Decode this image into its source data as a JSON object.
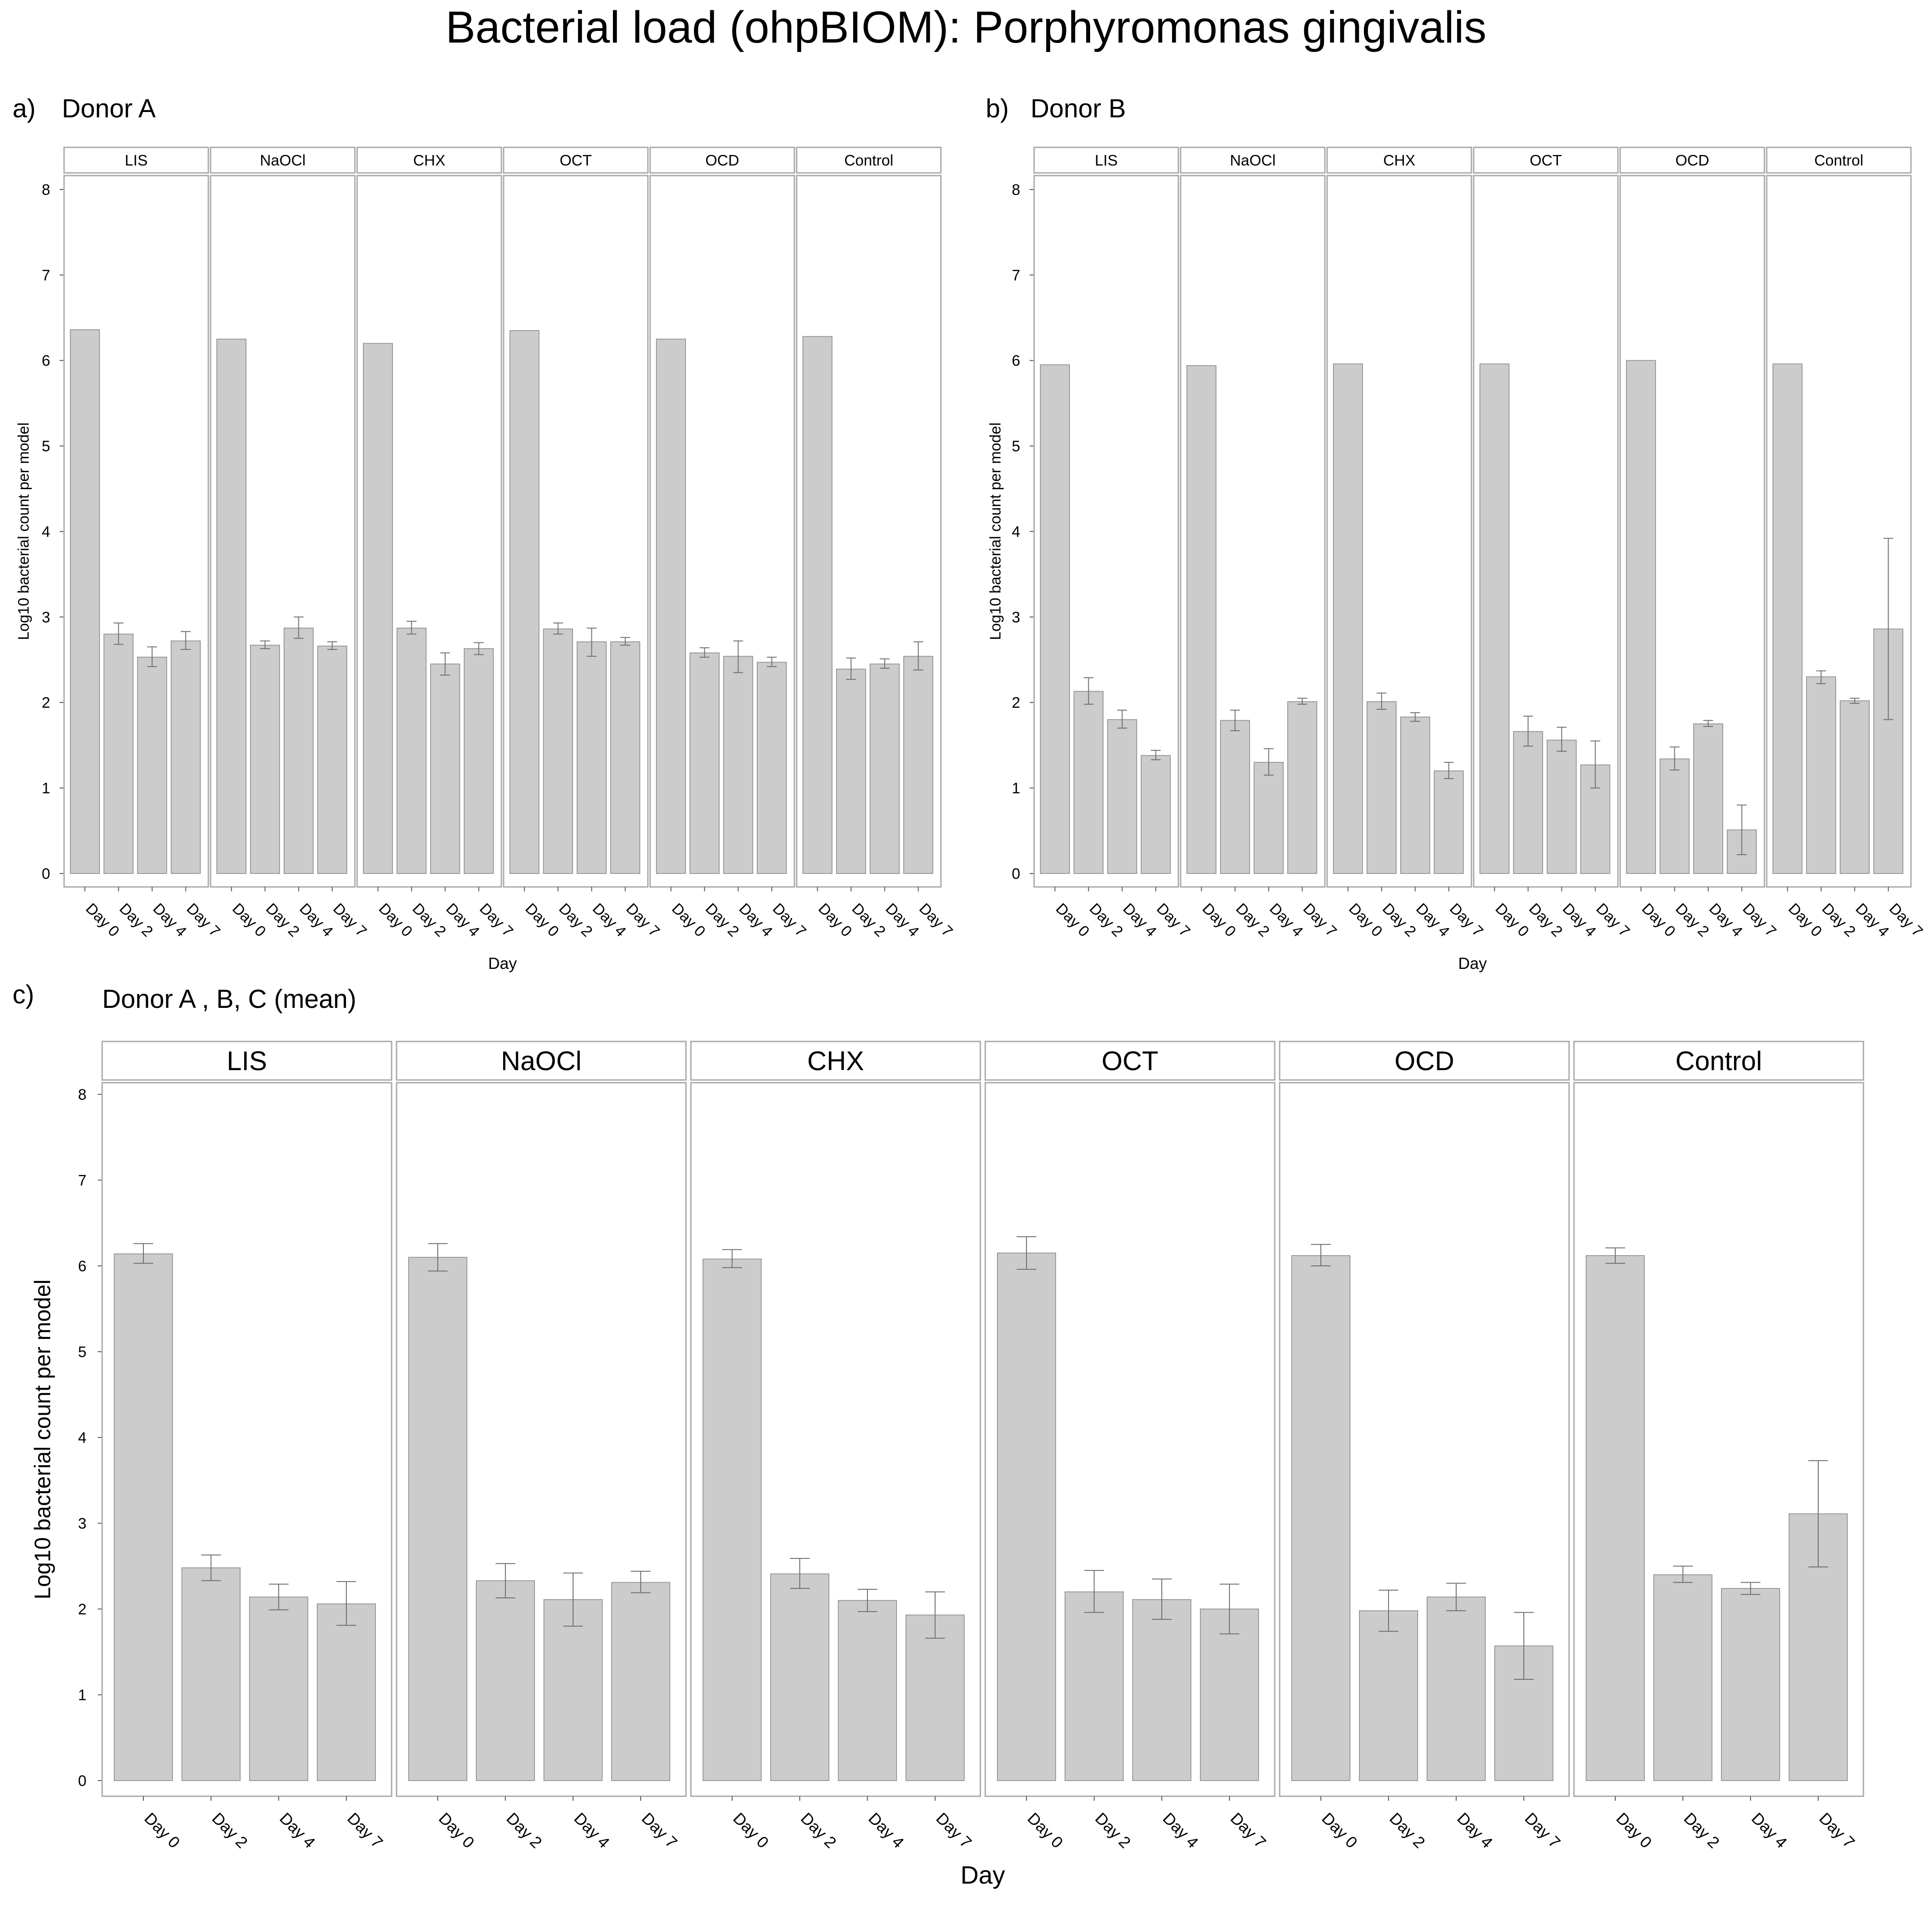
{
  "figure": {
    "title": "Bacterial load (ohpBIOM): Porphyromonas gingivalis"
  },
  "chart_data": [
    {
      "type": "bar",
      "panel_letter": "a)",
      "title": "Donor A",
      "xlabel": "Day",
      "ylabel": "Log10 bacterial count per model",
      "ylim": [
        0,
        8.2
      ],
      "yticks": [
        0,
        1,
        2,
        3,
        4,
        5,
        6,
        7,
        8
      ],
      "grid": false,
      "categories": [
        "Day 0",
        "Day 2",
        "Day 4",
        "Day 7"
      ],
      "facets": [
        {
          "name": "LIS",
          "values": [
            6.36,
            2.8,
            2.53,
            2.72
          ],
          "err_low": [
            null,
            2.68,
            2.42,
            2.62
          ],
          "err_high": [
            null,
            2.93,
            2.65,
            2.83
          ]
        },
        {
          "name": "NaOCl",
          "values": [
            6.25,
            2.67,
            2.87,
            2.66
          ],
          "err_low": [
            null,
            2.63,
            2.75,
            2.62
          ],
          "err_high": [
            null,
            2.72,
            3.0,
            2.71
          ]
        },
        {
          "name": "CHX",
          "values": [
            6.2,
            2.87,
            2.45,
            2.63
          ],
          "err_low": [
            null,
            2.8,
            2.32,
            2.56
          ],
          "err_high": [
            null,
            2.95,
            2.58,
            2.7
          ]
        },
        {
          "name": "OCT",
          "values": [
            6.35,
            2.86,
            2.71,
            2.71
          ],
          "err_low": [
            null,
            2.8,
            2.54,
            2.67
          ],
          "err_high": [
            null,
            2.93,
            2.87,
            2.76
          ]
        },
        {
          "name": "OCD",
          "values": [
            6.25,
            2.58,
            2.54,
            2.47
          ],
          "err_low": [
            null,
            2.53,
            2.35,
            2.42
          ],
          "err_high": [
            null,
            2.64,
            2.72,
            2.53
          ]
        },
        {
          "name": "Control",
          "values": [
            6.28,
            2.39,
            2.45,
            2.54
          ],
          "err_low": [
            null,
            2.27,
            2.4,
            2.38
          ],
          "err_high": [
            null,
            2.52,
            2.51,
            2.71
          ]
        }
      ]
    },
    {
      "type": "bar",
      "panel_letter": "b)",
      "title": "Donor B",
      "xlabel": "Day",
      "ylabel": "Log10 bacterial count per model",
      "ylim": [
        0,
        8.2
      ],
      "yticks": [
        0,
        1,
        2,
        3,
        4,
        5,
        6,
        7,
        8
      ],
      "grid": false,
      "categories": [
        "Day 0",
        "Day 2",
        "Day 4",
        "Day 7"
      ],
      "facets": [
        {
          "name": "LIS",
          "values": [
            5.95,
            2.13,
            1.8,
            1.38
          ],
          "err_low": [
            null,
            1.98,
            1.7,
            1.33
          ],
          "err_high": [
            null,
            2.29,
            1.91,
            1.44
          ]
        },
        {
          "name": "NaOCl",
          "values": [
            5.94,
            1.79,
            1.3,
            2.01
          ],
          "err_low": [
            null,
            1.67,
            1.15,
            1.98
          ],
          "err_high": [
            null,
            1.91,
            1.46,
            2.05
          ]
        },
        {
          "name": "CHX",
          "values": [
            5.96,
            2.01,
            1.83,
            1.2
          ],
          "err_low": [
            null,
            1.92,
            1.78,
            1.11
          ],
          "err_high": [
            null,
            2.11,
            1.88,
            1.3
          ]
        },
        {
          "name": "OCT",
          "values": [
            5.96,
            1.66,
            1.56,
            1.27
          ],
          "err_low": [
            null,
            1.49,
            1.43,
            1.0
          ],
          "err_high": [
            null,
            1.84,
            1.71,
            1.55
          ]
        },
        {
          "name": "OCD",
          "values": [
            6.0,
            1.34,
            1.75,
            0.51
          ],
          "err_low": [
            null,
            1.21,
            1.72,
            0.22
          ],
          "err_high": [
            null,
            1.48,
            1.79,
            0.8
          ]
        },
        {
          "name": "Control",
          "values": [
            5.96,
            2.3,
            2.02,
            2.86
          ],
          "err_low": [
            null,
            2.22,
            1.99,
            1.8
          ],
          "err_high": [
            null,
            2.37,
            2.05,
            3.92
          ]
        }
      ]
    },
    {
      "type": "bar",
      "panel_letter": "c)",
      "title": "Donor A , B, C (mean)",
      "xlabel": "Day",
      "ylabel": "Log10 bacterial count per model",
      "ylim": [
        0,
        8.2
      ],
      "yticks": [
        0,
        1,
        2,
        3,
        4,
        5,
        6,
        7,
        8
      ],
      "grid": false,
      "categories": [
        "Day 0",
        "Day 2",
        "Day 4",
        "Day 7"
      ],
      "facets": [
        {
          "name": "LIS",
          "values": [
            6.14,
            2.48,
            2.14,
            2.06
          ],
          "err_low": [
            6.03,
            2.33,
            1.99,
            1.81
          ],
          "err_high": [
            6.26,
            2.63,
            2.29,
            2.32
          ]
        },
        {
          "name": "NaOCl",
          "values": [
            6.1,
            2.33,
            2.11,
            2.31
          ],
          "err_low": [
            5.94,
            2.13,
            1.8,
            2.19
          ],
          "err_high": [
            6.26,
            2.53,
            2.42,
            2.44
          ]
        },
        {
          "name": "CHX",
          "values": [
            6.08,
            2.41,
            2.1,
            1.93
          ],
          "err_low": [
            5.98,
            2.24,
            1.97,
            1.66
          ],
          "err_high": [
            6.19,
            2.59,
            2.23,
            2.2
          ]
        },
        {
          "name": "OCT",
          "values": [
            6.15,
            2.2,
            2.11,
            2.0
          ],
          "err_low": [
            5.96,
            1.96,
            1.88,
            1.71
          ],
          "err_high": [
            6.34,
            2.45,
            2.35,
            2.29
          ]
        },
        {
          "name": "OCD",
          "values": [
            6.12,
            1.98,
            2.14,
            1.57
          ],
          "err_low": [
            6.0,
            1.74,
            1.98,
            1.18
          ],
          "err_high": [
            6.25,
            2.22,
            2.3,
            1.96
          ]
        },
        {
          "name": "Control",
          "values": [
            6.12,
            2.4,
            2.24,
            3.11
          ],
          "err_low": [
            6.03,
            2.31,
            2.17,
            2.49
          ],
          "err_high": [
            6.21,
            2.5,
            2.31,
            3.73
          ]
        }
      ]
    }
  ]
}
